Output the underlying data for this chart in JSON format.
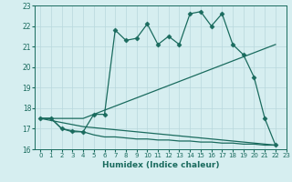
{
  "title": "",
  "xlabel": "Humidex (Indice chaleur)",
  "xlim": [
    -0.5,
    23
  ],
  "ylim": [
    16,
    23
  ],
  "yticks": [
    16,
    17,
    18,
    19,
    20,
    21,
    22,
    23
  ],
  "xticks": [
    0,
    1,
    2,
    3,
    4,
    5,
    6,
    7,
    8,
    9,
    10,
    11,
    12,
    13,
    14,
    15,
    16,
    17,
    18,
    19,
    20,
    21,
    22,
    23
  ],
  "bg_color": "#d6eef0",
  "grid_color": "#b0d4d8",
  "line_color": "#1a6b5e",
  "line1_x": [
    0,
    1,
    2,
    3,
    4,
    5,
    6,
    7,
    8,
    9,
    10,
    11,
    12,
    13,
    14,
    15,
    16,
    17,
    18,
    19,
    20,
    21,
    22
  ],
  "line1_y": [
    17.5,
    17.5,
    17.0,
    16.9,
    16.85,
    17.7,
    17.7,
    21.8,
    21.3,
    21.4,
    22.1,
    21.1,
    21.5,
    21.1,
    22.6,
    22.7,
    22.0,
    22.6,
    21.1,
    20.6,
    19.5,
    17.5,
    16.2
  ],
  "line2_x": [
    0,
    4,
    22
  ],
  "line2_y": [
    17.5,
    17.5,
    21.1
  ],
  "line3_x": [
    0,
    4,
    22
  ],
  "line3_y": [
    17.5,
    17.1,
    16.2
  ],
  "line4_x": [
    0,
    1,
    2,
    3,
    4,
    5,
    6,
    7,
    8,
    9,
    10,
    11,
    12,
    13,
    14,
    15,
    16,
    17,
    18,
    19,
    20,
    21,
    22
  ],
  "line4_y": [
    17.5,
    17.5,
    17.0,
    16.85,
    16.85,
    16.7,
    16.6,
    16.6,
    16.55,
    16.5,
    16.5,
    16.45,
    16.45,
    16.4,
    16.4,
    16.35,
    16.35,
    16.3,
    16.3,
    16.25,
    16.25,
    16.2,
    16.2
  ]
}
